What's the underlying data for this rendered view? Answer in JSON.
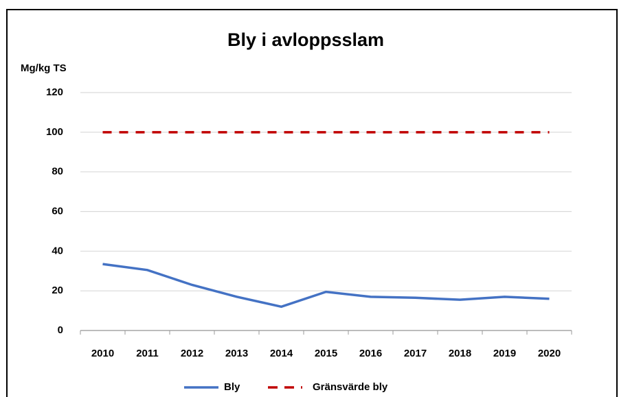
{
  "chart_data": {
    "type": "line",
    "title": "Bly i avloppsslam",
    "y_label": "Mg/kg TS",
    "categories": [
      "2010",
      "2011",
      "2012",
      "2013",
      "2014",
      "2015",
      "2016",
      "2017",
      "2018",
      "2019",
      "2020"
    ],
    "series": [
      {
        "name": "Bly",
        "color": "#4472c4",
        "dash": false,
        "values": [
          33.5,
          30.5,
          23,
          17,
          12,
          19.5,
          17,
          16.5,
          15.5,
          17,
          16
        ]
      },
      {
        "name": "Gränsvärde bly",
        "color": "#c00000",
        "dash": true,
        "values": [
          100,
          100,
          100,
          100,
          100,
          100,
          100,
          100,
          100,
          100,
          100
        ]
      }
    ],
    "ylim": [
      0,
      120
    ],
    "yticks": [
      0,
      20,
      40,
      60,
      80,
      100,
      120
    ],
    "grid": true,
    "legend": "bottom"
  }
}
